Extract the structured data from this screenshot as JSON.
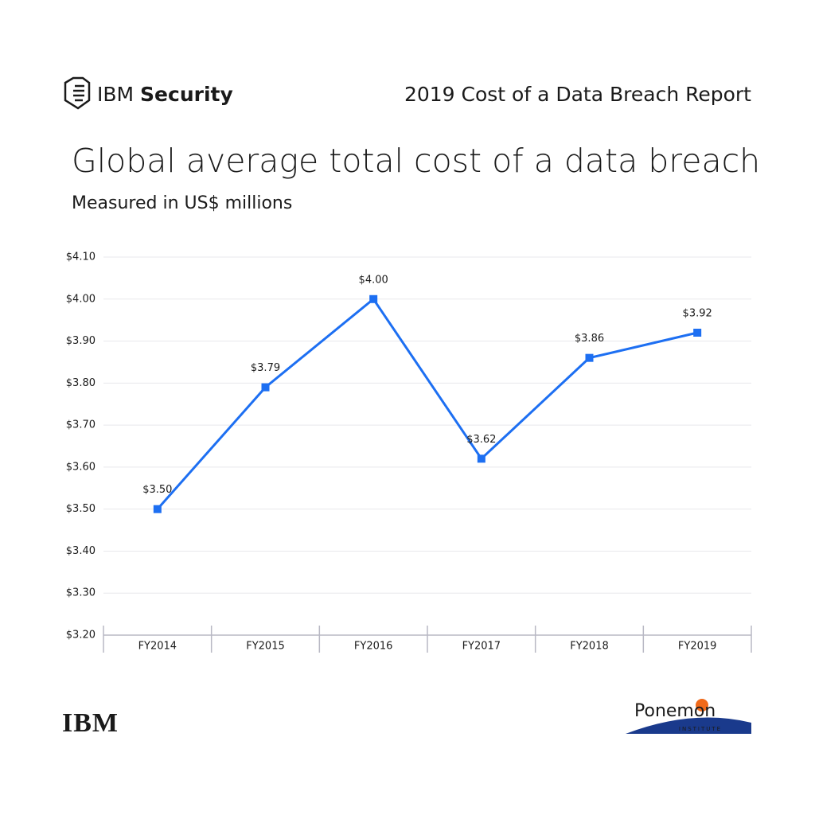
{
  "header": {
    "brand_prefix": "IBM",
    "brand_name": "Security",
    "report": "2019 Cost of a Data Breach Report"
  },
  "chart_data": {
    "type": "line",
    "title": "Global average total cost of a data breach",
    "subtitle": "Measured in US$ millions",
    "categories": [
      "FY2014",
      "FY2015",
      "FY2016",
      "FY2017",
      "FY2018",
      "FY2019"
    ],
    "values": [
      3.5,
      3.79,
      4,
      3.62,
      3.86,
      3.92
    ],
    "value_labels": [
      "$3.50",
      "$3.79",
      "$4.00",
      "$3.62",
      "$3.86",
      "$3.92"
    ],
    "color": "#1d6ff2",
    "ylim": [
      3.2,
      4.1
    ],
    "yticks": [
      {
        "value": 3.2,
        "label": "$3.20"
      },
      {
        "value": 3.3,
        "label": "$3.30"
      },
      {
        "value": 3.4,
        "label": "$3.40"
      },
      {
        "value": 3.5,
        "label": "$3.50"
      },
      {
        "value": 3.6,
        "label": "$3.60"
      },
      {
        "value": 3.7,
        "label": "$3.70"
      },
      {
        "value": 3.8,
        "label": "$3.80"
      },
      {
        "value": 3.9,
        "label": "$3.90"
      },
      {
        "value": 4.0,
        "label": "$4.00"
      },
      {
        "value": 4.1,
        "label": "$4.10"
      }
    ],
    "grid": true
  },
  "footer": {
    "logo": "IBM",
    "partner": "Ponemon",
    "partner_sub": "INSTITUTE"
  }
}
